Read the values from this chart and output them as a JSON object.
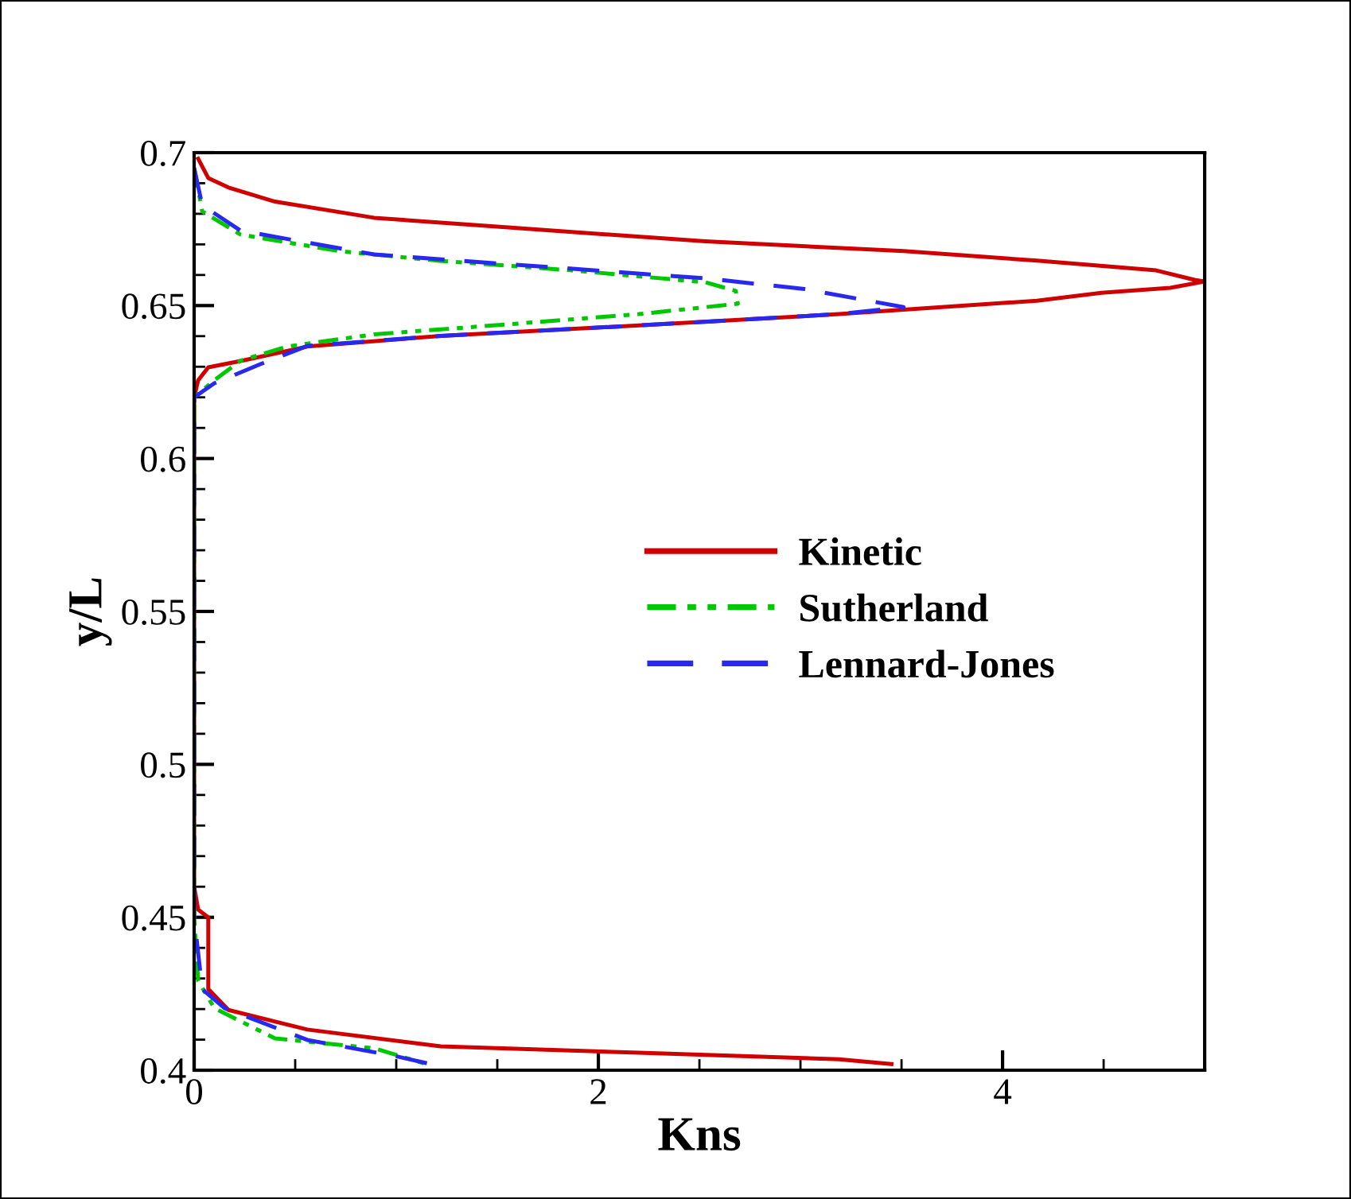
{
  "chart_data": {
    "type": "line",
    "xlabel": "Kns",
    "ylabel": "y/L",
    "xlim": [
      0,
      5
    ],
    "ylim": [
      0.4,
      0.7
    ],
    "xticks": [
      0,
      2,
      4
    ],
    "yticks": [
      0.4,
      0.45,
      0.5,
      0.55,
      0.6,
      0.65,
      0.7
    ],
    "grid": false,
    "legend": "center",
    "marker": "none",
    "series": [
      {
        "name": "Kinetic",
        "color": "#d00000",
        "line_style": "solid",
        "x": [
          0.02,
          0.07,
          0.17,
          0.4,
          0.89,
          1.54,
          2.53,
          3.51,
          4.17,
          4.76,
          4.95,
          5.0,
          4.83,
          4.49,
          4.17,
          3.19,
          2.2,
          1.22,
          0.56,
          0.24,
          0.07,
          0.02,
          0.0,
          0.0,
          0.02,
          0.07,
          0.07,
          0.17,
          0.56,
          1.22,
          2.2,
          3.19,
          3.45
        ],
        "values": [
          0.698,
          0.6917,
          0.6886,
          0.684,
          0.6787,
          0.6756,
          0.671,
          0.6678,
          0.6647,
          0.6615,
          0.6584,
          0.6579,
          0.6558,
          0.6542,
          0.6516,
          0.6472,
          0.6435,
          0.6401,
          0.6366,
          0.632,
          0.6298,
          0.6256,
          0.62,
          0.46,
          0.4525,
          0.45,
          0.4265,
          0.4197,
          0.4133,
          0.4078,
          0.4057,
          0.4036,
          0.402
        ]
      },
      {
        "name": "Sutherland",
        "color": "#00c800",
        "line_style": "dashdotdot",
        "x": [
          0.0,
          0.04,
          0.23,
          0.72,
          1.22,
          1.87,
          2.53,
          2.68,
          2.69,
          2.2,
          1.54,
          0.89,
          0.46,
          0.23,
          0.1,
          0.0,
          0.0,
          0.02,
          0.1,
          0.4,
          0.89,
          1.15
        ],
        "values": [
          0.695,
          0.6808,
          0.6732,
          0.6678,
          0.6646,
          0.6615,
          0.6576,
          0.6548,
          0.6506,
          0.6472,
          0.6438,
          0.6406,
          0.6366,
          0.632,
          0.6256,
          0.62,
          0.45,
          0.4292,
          0.4203,
          0.4104,
          0.4072,
          0.402
        ]
      },
      {
        "name": "Lennard-Jones",
        "color": "#2828f0",
        "line_style": "dashed",
        "x": [
          0.0,
          0.04,
          0.23,
          0.89,
          1.54,
          2.53,
          3.02,
          3.51,
          3.19,
          2.2,
          1.22,
          0.56,
          0.33,
          0.1,
          0.0,
          0.0,
          0.04,
          0.15,
          0.56,
          0.99,
          1.17
        ],
        "values": [
          0.695,
          0.6828,
          0.6745,
          0.6667,
          0.6636,
          0.6589,
          0.6554,
          0.6495,
          0.6472,
          0.6435,
          0.6401,
          0.6368,
          0.6309,
          0.6246,
          0.62,
          0.45,
          0.4265,
          0.4203,
          0.4099,
          0.4047,
          0.402
        ]
      }
    ]
  }
}
